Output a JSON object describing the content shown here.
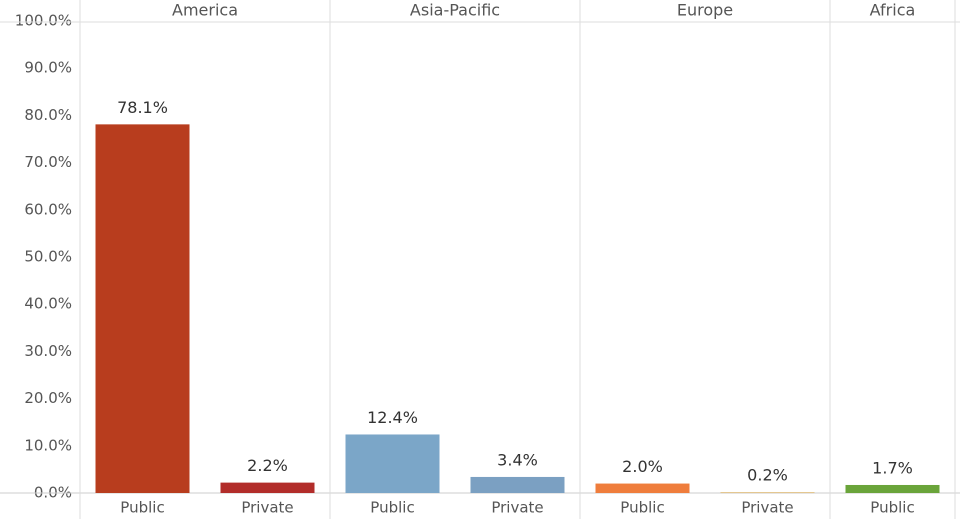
{
  "chart_data": {
    "type": "bar",
    "groups": [
      {
        "name": "America",
        "categories": [
          "Public",
          "Private"
        ],
        "values": [
          78.1,
          2.2
        ],
        "value_labels": [
          "78.1%",
          "2.2%"
        ],
        "colors": [
          "#b83d1e",
          "#b22d2a"
        ]
      },
      {
        "name": "Asia-Pacific",
        "categories": [
          "Public",
          "Private"
        ],
        "values": [
          12.4,
          3.4
        ],
        "value_labels": [
          "12.4%",
          "3.4%"
        ],
        "colors": [
          "#7ba6c8",
          "#7ba0c2"
        ]
      },
      {
        "name": "Europe",
        "categories": [
          "Public",
          "Private"
        ],
        "values": [
          2.0,
          0.2
        ],
        "value_labels": [
          "2.0%",
          "0.2%"
        ],
        "colors": [
          "#ef7d3c",
          "#e2c48a"
        ]
      },
      {
        "name": "Africa",
        "categories": [
          "Public"
        ],
        "values": [
          1.7
        ],
        "value_labels": [
          "1.7%"
        ],
        "colors": [
          "#6aa43a"
        ]
      }
    ],
    "ylim": [
      0,
      100
    ],
    "yticks": [
      {
        "value": 0,
        "label": "0.0%"
      },
      {
        "value": 10,
        "label": "10.0%"
      },
      {
        "value": 20,
        "label": "20.0%"
      },
      {
        "value": 30,
        "label": "30.0%"
      },
      {
        "value": 40,
        "label": "40.0%"
      },
      {
        "value": 50,
        "label": "50.0%"
      },
      {
        "value": 60,
        "label": "60.0%"
      },
      {
        "value": 70,
        "label": "70.0%"
      },
      {
        "value": 80,
        "label": "80.0%"
      },
      {
        "value": 90,
        "label": "90.0%"
      },
      {
        "value": 100,
        "label": "100.0%"
      }
    ]
  }
}
